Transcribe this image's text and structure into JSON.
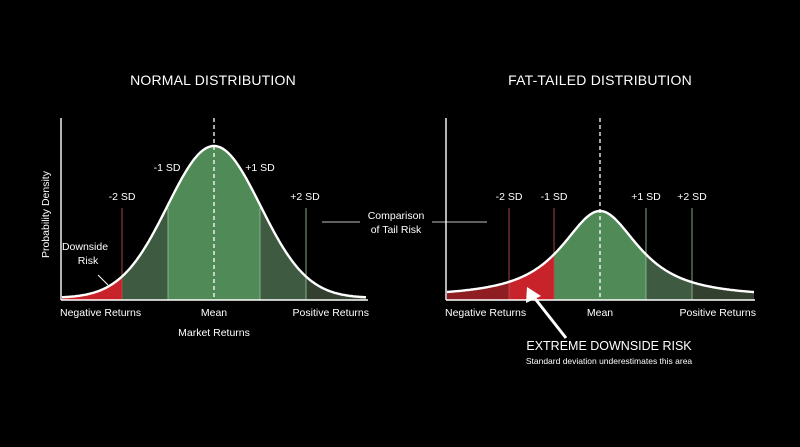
{
  "left_panel": {
    "title": "NORMAL DISTRIBUTION",
    "y_axis_label": "Probability Density",
    "x_axis_label": "Market Returns",
    "x_left_label": "Negative Returns",
    "x_center_label": "Mean",
    "x_right_label": "Positive Returns",
    "sd_labels": {
      "m2": "-2 SD",
      "m1": "-1 SD",
      "p1": "+1 SD",
      "p2": "+2 SD"
    },
    "annotation_line1": "Downside",
    "annotation_line2": "Risk"
  },
  "right_panel": {
    "title": "FAT-TAILED DISTRIBUTION",
    "x_left_label": "Negative Returns",
    "x_center_label": "Mean",
    "x_right_label": "Positive Returns",
    "sd_labels": {
      "m2": "-2 SD",
      "m1": "-1 SD",
      "p1": "+1 SD",
      "p2": "+2 SD"
    },
    "callout_title": "EXTREME DOWNSIDE RISK",
    "callout_subtitle": "Standard deviation underestimates this area"
  },
  "comparison_line1": "Comparison",
  "comparison_line2": "of Tail Risk",
  "colors": {
    "background": "#000000",
    "curve": "#ffffff",
    "center_fill": "#4f8a57",
    "shoulder_fill": "#3e5a41",
    "tail_red": "#c8232a",
    "tail_dark_red": "#8f1e22",
    "tail_green_dark": "#34402f"
  }
}
